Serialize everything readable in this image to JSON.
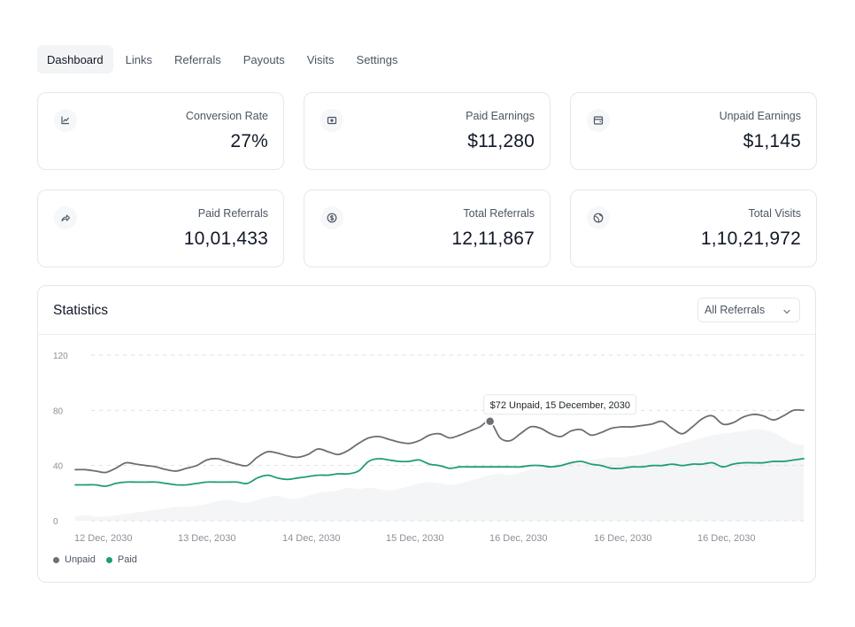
{
  "tabs": [
    {
      "label": "Dashboard",
      "active": true
    },
    {
      "label": "Links",
      "active": false
    },
    {
      "label": "Referrals",
      "active": false
    },
    {
      "label": "Payouts",
      "active": false
    },
    {
      "label": "Visits",
      "active": false
    },
    {
      "label": "Settings",
      "active": false
    }
  ],
  "cards": [
    {
      "label": "Conversion Rate",
      "value": "27%",
      "icon": "chart-line-icon"
    },
    {
      "label": "Paid Earnings",
      "value": "$11,280",
      "icon": "cash-icon"
    },
    {
      "label": "Unpaid Earnings",
      "value": "$1,145",
      "icon": "wallet-icon"
    },
    {
      "label": "Paid Referrals",
      "value": "10,01,433",
      "icon": "share-arrow-icon"
    },
    {
      "label": "Total Referrals",
      "value": "12,11,867",
      "icon": "dollar-circle-icon"
    },
    {
      "label": "Total Visits",
      "value": "1,10,21,972",
      "icon": "globe-icon"
    }
  ],
  "statistics": {
    "title": "Statistics",
    "filter": {
      "selected": "All Referrals"
    },
    "legend": [
      {
        "name": "Unpaid",
        "color": "#6b6e73"
      },
      {
        "name": "Paid",
        "color": "#1f9d73"
      }
    ],
    "tooltip": "$72 Unpaid, 15 December, 2030"
  },
  "chart_data": {
    "type": "line",
    "x_tick_labels": [
      "12 Dec, 2030",
      "13 Dec, 2030",
      "14 Dec, 2030",
      "15 Dec, 2030",
      "16 Dec, 2030",
      "16 Dec, 2030",
      "16 Dec, 2030"
    ],
    "y_ticks": [
      0,
      40,
      80,
      120
    ],
    "ylim": [
      0,
      120
    ],
    "grid": true,
    "series": [
      {
        "name": "Unpaid",
        "color": "#6b6e73",
        "values": [
          37,
          37,
          36,
          35,
          38,
          42,
          41,
          40,
          39,
          37,
          36,
          38,
          40,
          44,
          45,
          43,
          41,
          40,
          46,
          50,
          49,
          47,
          46,
          48,
          52,
          50,
          48,
          51,
          56,
          60,
          61,
          59,
          57,
          56,
          58,
          62,
          63,
          60,
          62,
          65,
          68,
          72,
          60,
          58,
          63,
          68,
          67,
          63,
          61,
          65,
          66,
          62,
          64,
          67,
          68,
          68,
          69,
          70,
          72,
          67,
          63,
          68,
          74,
          76,
          70,
          71,
          75,
          77,
          76,
          73,
          76,
          80,
          80
        ]
      },
      {
        "name": "Paid",
        "color": "#1f9d73",
        "values": [
          26,
          26,
          26,
          25,
          27,
          28,
          28,
          28,
          28,
          27,
          26,
          26,
          27,
          28,
          28,
          28,
          28,
          27,
          31,
          33,
          31,
          30,
          31,
          32,
          33,
          33,
          34,
          34,
          36,
          43,
          45,
          44,
          43,
          43,
          44,
          41,
          40,
          38,
          39,
          39,
          39,
          39,
          39,
          39,
          39,
          40,
          40,
          39,
          40,
          42,
          43,
          41,
          40,
          38,
          38,
          39,
          39,
          40,
          40,
          41,
          40,
          41,
          41,
          42,
          39,
          41,
          42,
          42,
          42,
          43,
          43,
          44,
          45
        ]
      }
    ],
    "area_series": {
      "values": [
        3,
        4,
        3,
        3,
        4,
        5,
        6,
        7,
        8,
        9,
        10,
        10,
        11,
        12,
        14,
        15,
        14,
        13,
        15,
        17,
        18,
        16,
        16,
        18,
        20,
        21,
        22,
        24,
        23,
        24,
        23,
        22,
        23,
        25,
        27,
        28,
        27,
        26,
        27,
        29,
        31,
        33,
        34,
        33,
        35,
        37,
        38,
        40,
        42,
        43,
        42,
        44,
        45,
        46,
        46,
        47,
        48,
        50,
        52,
        54,
        56,
        58,
        60,
        62,
        63,
        64,
        65,
        66,
        66,
        64,
        60,
        56,
        55
      ]
    },
    "tooltip": {
      "point_index": 41,
      "series": "Unpaid",
      "value": 72,
      "date": "15 December, 2030"
    }
  }
}
